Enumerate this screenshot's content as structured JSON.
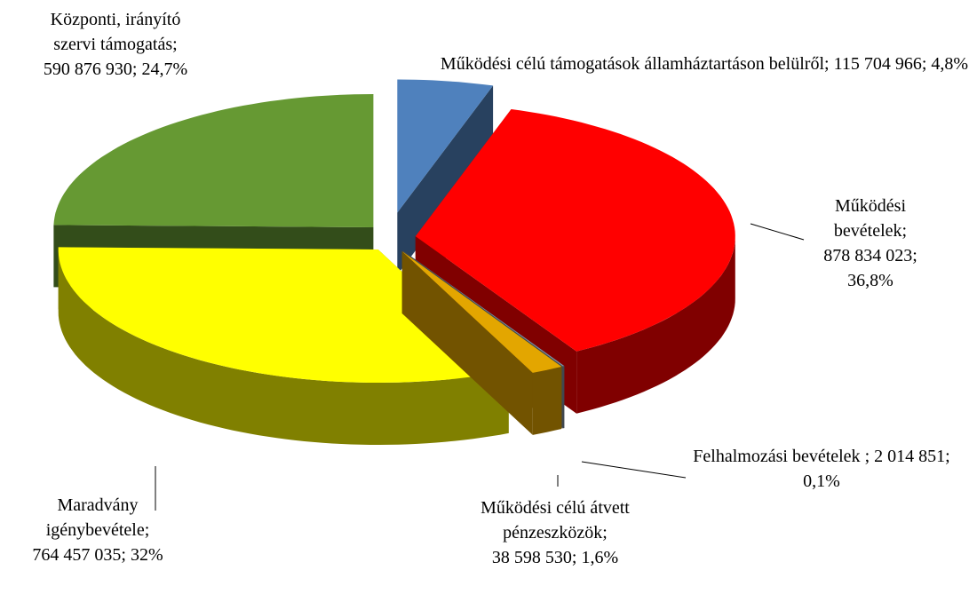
{
  "chart_data": {
    "type": "pie",
    "categories": [
      "Működési célú támogatások államháztartáson belülről",
      "Működési bevételek",
      "Felhalmozási bevételek ",
      "Működési célú átvett pénzeszközök",
      "Maradvány igénybevétele",
      "Központi, irányító szervi támogatás"
    ],
    "values": [
      115704966,
      878834023,
      2014851,
      38598530,
      764457035,
      590876930
    ],
    "value_labels": [
      "115 704 966",
      "878 834 023",
      "2 014 851",
      "38 598 530",
      "764 457 035",
      "590 876 930"
    ],
    "percents": [
      4.8,
      36.8,
      0.1,
      1.6,
      32,
      24.7
    ],
    "percent_labels": [
      "4,8%",
      "36,8%",
      "0,1%",
      "1,6%",
      "32%",
      "24,7%"
    ],
    "separator": ";",
    "colors": [
      "#4f81bd",
      "#ff0000",
      "#7f8fa0",
      "#e3a600",
      "#ffff00",
      "#669933"
    ]
  }
}
